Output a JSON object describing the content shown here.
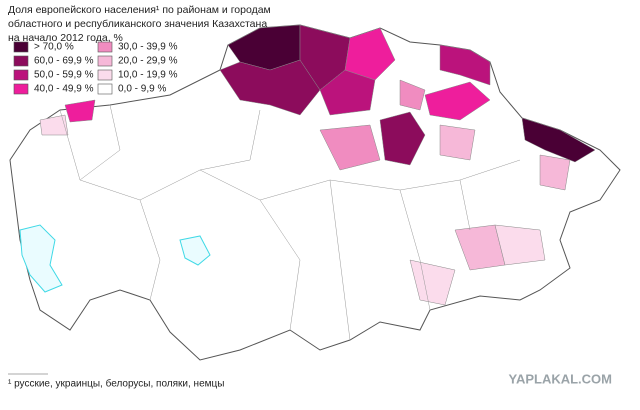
{
  "title": [
    "Доля европейского населения¹ по районам и городам",
    "областного и республиканского значения Казахстана",
    "на начало 2012 года, %"
  ],
  "legend": [
    {
      "label": "> 70,0 %",
      "color": "#4a0035"
    },
    {
      "label": "60,0 - 69,9 %",
      "color": "#8c0c5c"
    },
    {
      "label": "50,0 - 59,9 %",
      "color": "#bb137c"
    },
    {
      "label": "40,0 - 49,9 %",
      "color": "#ee1e9c"
    },
    {
      "label": "30,0 - 39,9 %",
      "color": "#f08cc0"
    },
    {
      "label": "20,0 - 29,9 %",
      "color": "#f6b8d8"
    },
    {
      "label": "10,0 - 19,9 %",
      "color": "#fbdcec"
    },
    {
      "label": "0,0 - 9,9 %",
      "color": "#ffffff"
    }
  ],
  "footnote": "¹ русские, украинцы, белорусы, поляки, немцы",
  "watermark": "YAPLAKAL.COM"
}
